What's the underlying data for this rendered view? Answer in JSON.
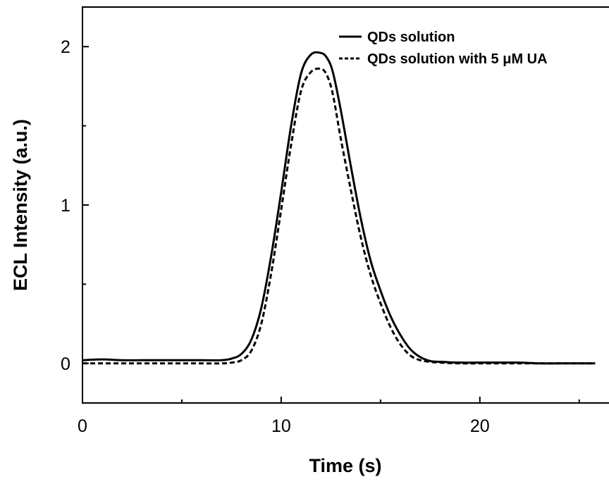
{
  "chart_data": {
    "type": "line",
    "title": "",
    "xlabel": "Time (s)",
    "ylabel": "ECL Intensity (a.u.)",
    "xlim": [
      0,
      26.5
    ],
    "ylim": [
      -0.25,
      2.25
    ],
    "x_ticks": [
      {
        "value": 0,
        "label": "0"
      },
      {
        "value": 10,
        "label": "10"
      },
      {
        "value": 20,
        "label": "20"
      }
    ],
    "x_minor_ticks": [
      5,
      15,
      25
    ],
    "y_ticks": [
      {
        "value": 0,
        "label": "0"
      },
      {
        "value": 1,
        "label": "1"
      },
      {
        "value": 2,
        "label": "2"
      }
    ],
    "y_minor_ticks": [
      0.5,
      1.5
    ],
    "grid": false,
    "legend_position": "top-right",
    "series": [
      {
        "name": "QDs solution",
        "style": "solid",
        "color": "#000000",
        "x": [
          0,
          1,
          2,
          3,
          4,
          5,
          6,
          7,
          7.5,
          8,
          8.5,
          9,
          9.5,
          10,
          10.5,
          11,
          11.5,
          12,
          12.3,
          12.6,
          13,
          13.5,
          14,
          14.5,
          15,
          15.5,
          16,
          16.5,
          17,
          17.5,
          18,
          19,
          20,
          21,
          22,
          23,
          24,
          25,
          25.8
        ],
        "values": [
          0.02,
          0.025,
          0.02,
          0.02,
          0.02,
          0.02,
          0.02,
          0.02,
          0.03,
          0.06,
          0.15,
          0.35,
          0.68,
          1.08,
          1.5,
          1.83,
          1.95,
          1.96,
          1.93,
          1.84,
          1.6,
          1.25,
          0.92,
          0.65,
          0.46,
          0.3,
          0.18,
          0.09,
          0.04,
          0.015,
          0.01,
          0.005,
          0.005,
          0.005,
          0.005,
          0.0,
          0.0,
          0.0,
          0.0
        ]
      },
      {
        "name": "QDs solution with 5 μM UA",
        "style": "dashed",
        "color": "#000000",
        "x": [
          0,
          1,
          2,
          3,
          4,
          5,
          6,
          7,
          7.5,
          8,
          8.5,
          9,
          9.5,
          10,
          10.5,
          11,
          11.5,
          12,
          12.3,
          12.6,
          13,
          13.5,
          14,
          14.5,
          15,
          15.5,
          16,
          16.5,
          17,
          17.5,
          18,
          19,
          20,
          21,
          22,
          23,
          24,
          25,
          25.8
        ],
        "values": [
          0.0,
          0.0,
          0.0,
          0.0,
          0.0,
          0.0,
          0.0,
          0.0,
          0.005,
          0.02,
          0.08,
          0.25,
          0.57,
          0.97,
          1.38,
          1.72,
          1.84,
          1.86,
          1.82,
          1.7,
          1.42,
          1.1,
          0.8,
          0.56,
          0.38,
          0.23,
          0.12,
          0.05,
          0.02,
          0.01,
          0.005,
          0.0,
          0.0,
          0.0,
          0.0,
          0.0,
          0.0,
          0.0,
          0.0
        ]
      }
    ]
  }
}
